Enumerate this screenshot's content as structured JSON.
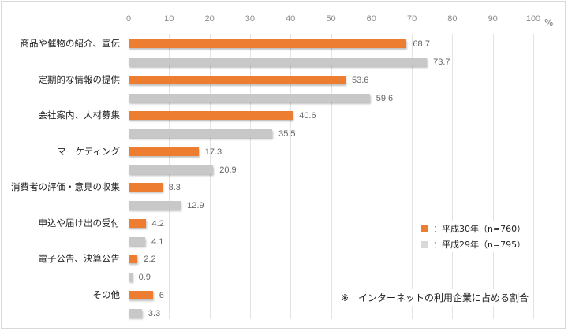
{
  "chart_data": {
    "type": "bar",
    "orientation": "horizontal",
    "title": "",
    "xlabel": "%",
    "ylabel": "",
    "xlim": [
      0,
      100
    ],
    "x_ticks": [
      "0",
      "10",
      "20",
      "30",
      "40",
      "50",
      "60",
      "70",
      "80",
      "90",
      "100"
    ],
    "grid": true,
    "categories": [
      "商品や催物の紹介、宣伝",
      "定期的な情報の提供",
      "会社案内、人材募集",
      "マーケティング",
      "消費者の評価・意見の収集",
      "申込や届け出の受付",
      "電子公告、決算公告",
      "その他"
    ],
    "series": [
      {
        "name": "：平成30年（n=760）",
        "color": "#ed7d31",
        "values": [
          68.7,
          53.6,
          40.6,
          17.3,
          8.3,
          4.2,
          2.2,
          6
        ],
        "labels": [
          "68.7",
          "53.6",
          "40.6",
          "17.3",
          "8.3",
          "4.2",
          "2.2",
          "6"
        ]
      },
      {
        "name": "：平成29年（n=795）",
        "color": "#c8c8c8",
        "values": [
          73.7,
          59.6,
          35.5,
          20.9,
          12.9,
          4.1,
          0.9,
          3.3
        ],
        "labels": [
          "73.7",
          "59.6",
          "35.5",
          "20.9",
          "12.9",
          "4.1",
          "0.9",
          "3.3"
        ]
      }
    ],
    "legend_position": "inside-lower-right",
    "annotation": "※　インターネットの利用企業に占める割合",
    "unit_label": "%"
  }
}
